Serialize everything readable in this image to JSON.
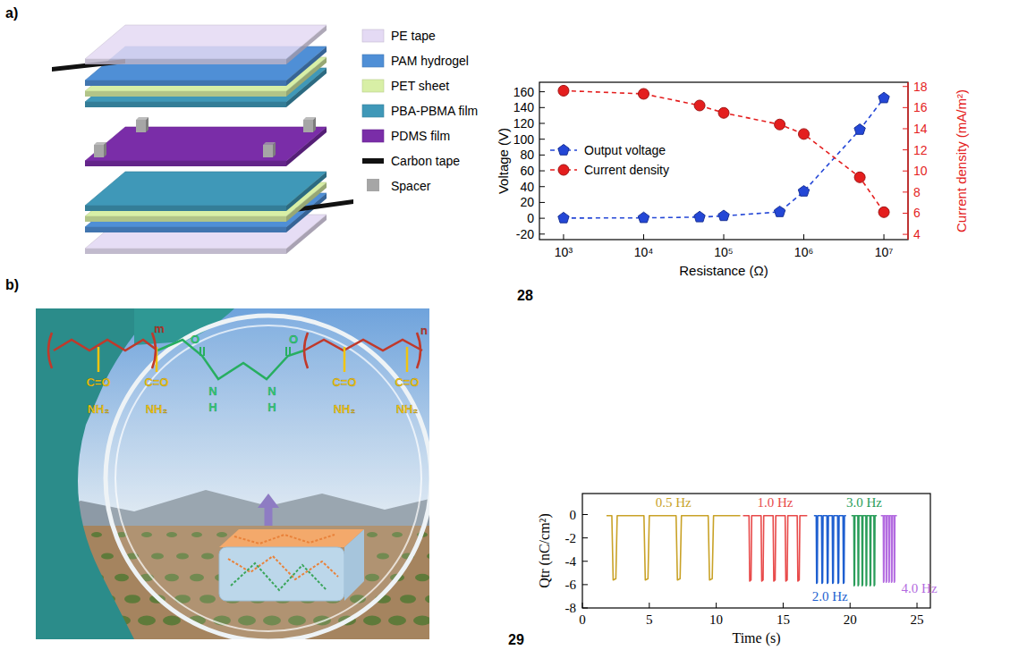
{
  "panel_labels": [
    "a)",
    "b)"
  ],
  "figure_numbers": [
    "28",
    "29"
  ],
  "diagram": {
    "items": [
      {
        "label": "PE tape",
        "color": "#e4daf4"
      },
      {
        "label": "PAM hydrogel",
        "color": "#4f8fd6"
      },
      {
        "label": "PET sheet",
        "color": "#d8efa6"
      },
      {
        "label": "PBA-PBMA film",
        "color": "#3f98b8"
      },
      {
        "label": "PDMS film",
        "color": "#7a2da8"
      },
      {
        "label": "Carbon tape",
        "color": "#111111"
      },
      {
        "label": "Spacer",
        "color": "#a6a6a6"
      }
    ]
  },
  "photo": {
    "structure_labels": [
      "m",
      "O",
      "N",
      "H",
      "N",
      "H",
      "O",
      "n",
      "C=O",
      "NH₂",
      "C=O",
      "NH₂",
      "C=O",
      "NH₂",
      "C=O",
      "NH₂"
    ]
  },
  "chart_data": [
    {
      "type": "line",
      "x": [
        1000,
        10000,
        50000,
        100000,
        500000,
        1000000,
        5000000,
        10000000
      ],
      "series": [
        {
          "name": "Output voltage",
          "color": "#2447d6",
          "marker": "pentagon",
          "line_style": "dashed",
          "axis": "y",
          "values": [
            0.2,
            0.5,
            1.5,
            3,
            8,
            34,
            112,
            152
          ]
        },
        {
          "name": "Current density",
          "color": "#e41e1e",
          "marker": "circle",
          "line_style": "dashed",
          "axis": "y2",
          "values": [
            17.6,
            17.3,
            16.2,
            15.5,
            14.4,
            13.5,
            9.4,
            6.1
          ]
        }
      ],
      "xlabel": "Resistance (Ω)",
      "ylabel": "Voltage (V)",
      "y2label": "Current density (mA/m²)",
      "log": "x",
      "xlim": [
        500,
        20000000
      ],
      "xticks": [
        {
          "value": 1000,
          "label": "10³"
        },
        {
          "value": 10000,
          "label": "10⁴"
        },
        {
          "value": 100000,
          "label": "10⁵"
        },
        {
          "value": 1000000,
          "label": "10⁶"
        },
        {
          "value": 10000000,
          "label": "10⁷"
        }
      ],
      "ylim": [
        -27,
        172
      ],
      "yticks": [
        -20,
        0,
        20,
        40,
        60,
        80,
        100,
        120,
        140,
        160
      ],
      "y2lim": [
        3.5,
        18.4
      ],
      "y2ticks": [
        4,
        6,
        8,
        10,
        12,
        14,
        16,
        18
      ],
      "grid": false,
      "legend": "center left"
    },
    {
      "type": "line",
      "xlabel": "Time (s)",
      "ylabel": "Qtr (nC/cm²)",
      "xlim": [
        0,
        26
      ],
      "xticks": [
        0,
        5,
        10,
        15,
        20,
        25
      ],
      "ylim": [
        -8,
        1.8
      ],
      "yticks": [
        -8,
        -6,
        -4,
        -2,
        0
      ],
      "grid": false,
      "series": [
        {
          "name": "0.5 Hz",
          "color": "#c9a227",
          "line_style": "solid",
          "x": [
            1.8,
            2.2,
            2.3,
            2.5,
            2.6,
            4.6,
            4.7,
            4.9,
            5.0,
            7.0,
            7.1,
            7.3,
            7.4,
            9.4,
            9.5,
            9.7,
            9.8,
            11.8
          ],
          "values": [
            -0.1,
            -0.1,
            -5.6,
            -5.5,
            -0.1,
            -0.1,
            -5.6,
            -5.5,
            -0.1,
            -0.1,
            -5.6,
            -5.5,
            -0.1,
            -0.1,
            -5.6,
            -5.5,
            -0.1,
            -0.1
          ]
        },
        {
          "name": "1.0 Hz",
          "color": "#e84a4a",
          "line_style": "solid",
          "x": [
            12.0,
            12.45,
            12.5,
            12.6,
            12.65,
            13.35,
            13.4,
            13.5,
            13.55,
            14.25,
            14.3,
            14.4,
            14.45,
            15.15,
            15.2,
            15.3,
            15.35,
            16.05,
            16.1,
            16.2,
            16.25,
            16.8
          ],
          "values": [
            -0.1,
            -0.1,
            -5.7,
            -5.6,
            -0.1,
            -0.1,
            -5.7,
            -5.6,
            -0.1,
            -0.1,
            -5.7,
            -5.6,
            -0.1,
            -0.1,
            -5.7,
            -5.6,
            -0.1,
            -0.1,
            -5.7,
            -5.6,
            -0.1,
            -0.1
          ]
        },
        {
          "name": "2.0 Hz",
          "color": "#1e5fd0",
          "line_style": "solid",
          "x": [
            17.3,
            17.47,
            17.5,
            17.55,
            17.58,
            17.87,
            17.9,
            17.95,
            17.98,
            18.27,
            18.3,
            18.35,
            18.38,
            18.67,
            18.7,
            18.75,
            18.78,
            19.07,
            19.1,
            19.15,
            19.18,
            19.47,
            19.5,
            19.55,
            19.58,
            19.7
          ],
          "values": [
            -0.1,
            -0.1,
            -5.9,
            -5.8,
            -0.1,
            -0.1,
            -5.9,
            -5.8,
            -0.1,
            -0.1,
            -5.9,
            -5.8,
            -0.1,
            -0.1,
            -5.9,
            -5.8,
            -0.1,
            -0.1,
            -5.9,
            -5.8,
            -0.1,
            -0.1,
            -5.9,
            -5.8,
            -0.1,
            -0.1
          ]
        },
        {
          "name": "3.0 Hz",
          "color": "#2a9d5a",
          "line_style": "solid",
          "x": [
            20.1,
            20.28,
            20.3,
            20.34,
            20.36,
            20.58,
            20.6,
            20.64,
            20.66,
            20.88,
            20.9,
            20.94,
            20.96,
            21.18,
            21.2,
            21.24,
            21.26,
            21.48,
            21.5,
            21.54,
            21.56,
            21.78,
            21.8,
            21.84,
            21.86,
            22.0
          ],
          "values": [
            -0.1,
            -0.1,
            -6.1,
            -6.0,
            -0.1,
            -0.1,
            -6.1,
            -6.0,
            -0.1,
            -0.1,
            -6.1,
            -6.0,
            -0.1,
            -0.1,
            -6.1,
            -6.0,
            -0.1,
            -0.1,
            -6.1,
            -6.0,
            -0.1,
            -0.1,
            -6.1,
            -6.0,
            -0.1,
            -0.1
          ]
        },
        {
          "name": "4.0 Hz",
          "color": "#b36be0",
          "line_style": "solid",
          "x": [
            22.3,
            22.48,
            22.5,
            22.53,
            22.55,
            22.68,
            22.7,
            22.73,
            22.75,
            22.88,
            22.9,
            22.93,
            22.95,
            23.08,
            23.1,
            23.13,
            23.15,
            23.28,
            23.3,
            23.33,
            23.35,
            23.5
          ],
          "values": [
            -0.1,
            -0.1,
            -5.8,
            -5.7,
            -0.1,
            -0.1,
            -5.8,
            -5.7,
            -0.1,
            -0.1,
            -5.8,
            -5.7,
            -0.1,
            -0.1,
            -5.8,
            -5.7,
            -0.1,
            -0.1,
            -5.8,
            -5.7,
            -0.1,
            -0.1
          ]
        }
      ]
    }
  ]
}
